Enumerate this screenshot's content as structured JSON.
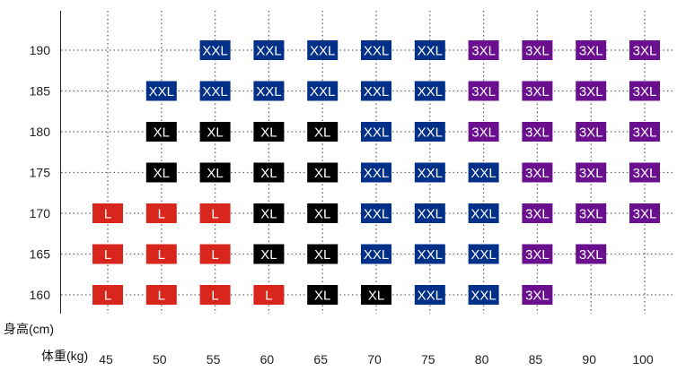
{
  "chart_data": {
    "type": "heatmap",
    "title": "",
    "xlabel": "体重(kg)",
    "ylabel": "身高(cm)",
    "x": [
      45,
      50,
      55,
      60,
      65,
      70,
      75,
      80,
      85,
      90,
      100
    ],
    "y": [
      190,
      185,
      180,
      175,
      170,
      165,
      160
    ],
    "grid": true,
    "size_colors": {
      "L": "#d9261c",
      "XL": "#000000",
      "XXL": "#003087",
      "3XL": "#6a0f8e"
    },
    "rows": [
      {
        "height": 190,
        "sizes": [
          "",
          "",
          "XXL",
          "XXL",
          "XXL",
          "XXL",
          "XXL",
          "3XL",
          "3XL",
          "3XL",
          "3XL"
        ]
      },
      {
        "height": 185,
        "sizes": [
          "",
          "XXL",
          "XXL",
          "XXL",
          "XXL",
          "XXL",
          "XXL",
          "3XL",
          "3XL",
          "3XL",
          "3XL"
        ]
      },
      {
        "height": 180,
        "sizes": [
          "",
          "XL",
          "XL",
          "XL",
          "XL",
          "XXL",
          "XXL",
          "3XL",
          "3XL",
          "3XL",
          "3XL"
        ]
      },
      {
        "height": 175,
        "sizes": [
          "",
          "XL",
          "XL",
          "XL",
          "XL",
          "XXL",
          "XXL",
          "XXL",
          "3XL",
          "3XL",
          "3XL"
        ]
      },
      {
        "height": 170,
        "sizes": [
          "L",
          "L",
          "L",
          "XL",
          "XL",
          "XXL",
          "XXL",
          "XXL",
          "3XL",
          "3XL",
          "3XL"
        ]
      },
      {
        "height": 165,
        "sizes": [
          "L",
          "L",
          "L",
          "XL",
          "XL",
          "XXL",
          "XXL",
          "XXL",
          "3XL",
          "3XL",
          ""
        ]
      },
      {
        "height": 160,
        "sizes": [
          "L",
          "L",
          "L",
          "L",
          "XL",
          "XL",
          "XXL",
          "XXL",
          "3XL",
          "",
          ""
        ]
      }
    ]
  }
}
